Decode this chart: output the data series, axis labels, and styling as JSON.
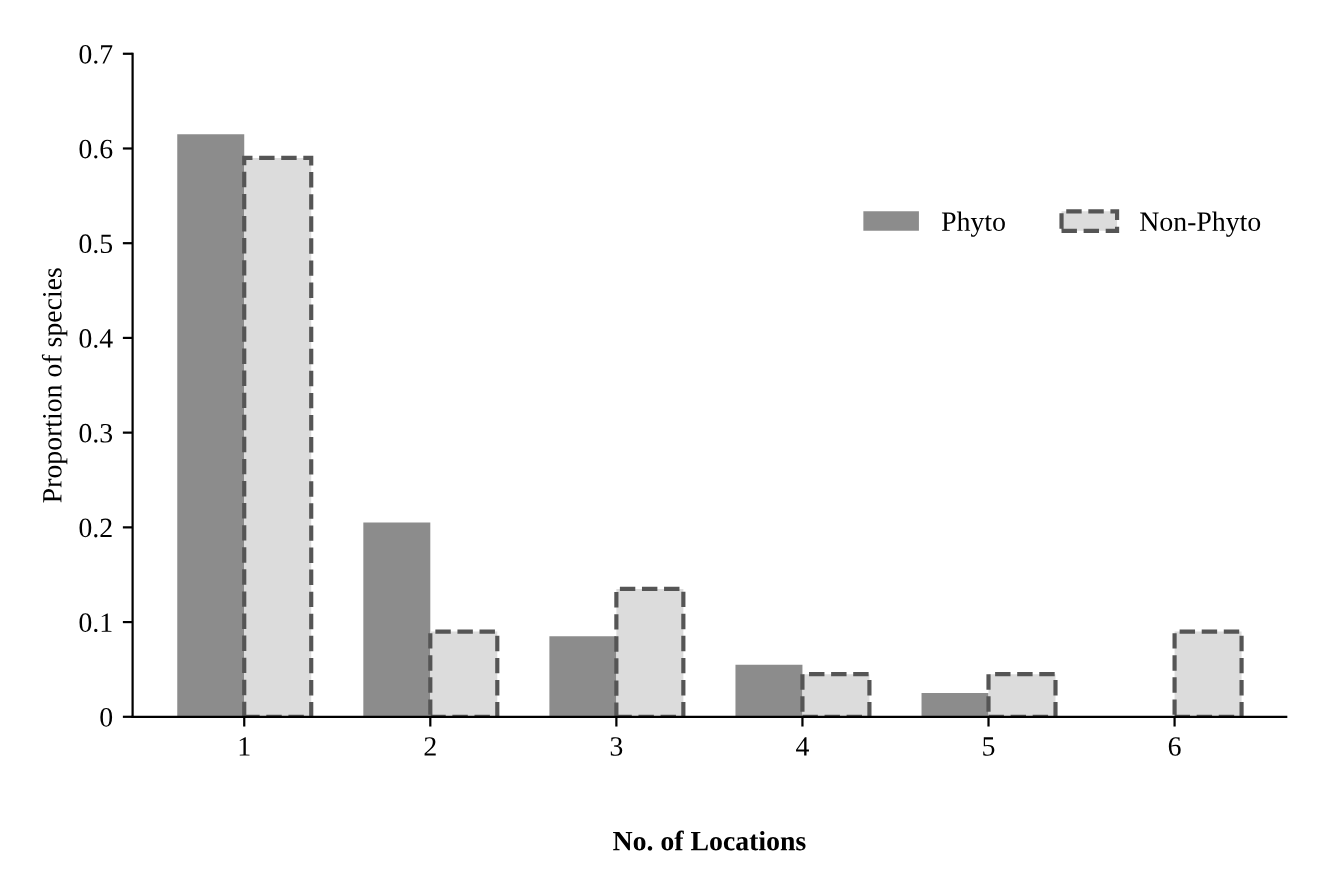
{
  "chart_data": {
    "type": "bar",
    "xlabel": "No. of Locations",
    "ylabel": "Proportion of species",
    "categories": [
      "1",
      "2",
      "3",
      "4",
      "5",
      "6"
    ],
    "series": [
      {
        "name": "Phyto",
        "color": "#8c8c8c",
        "values": [
          0.615,
          0.205,
          0.085,
          0.055,
          0.025,
          0
        ]
      },
      {
        "name": "Non-Phyto",
        "color": "#dcdcdc",
        "line_style": "dashed",
        "values": [
          0.59,
          0.09,
          0.135,
          0.045,
          0.045,
          0.09
        ]
      }
    ],
    "ylim": [
      0,
      0.7
    ],
    "yticks": [
      0,
      0.1,
      0.2,
      0.3,
      0.4,
      0.5,
      0.6,
      0.7
    ],
    "grid": false,
    "legend": "top right"
  }
}
